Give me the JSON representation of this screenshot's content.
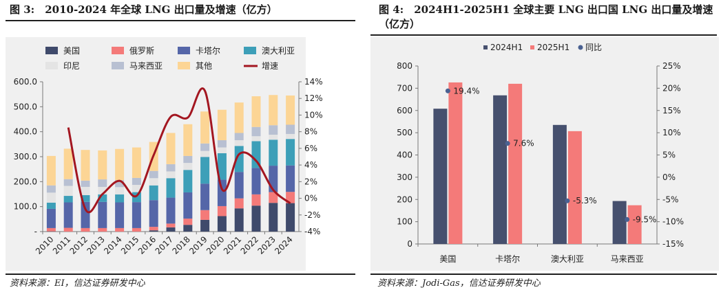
{
  "left": {
    "title": "图 3:　2010-2024 年全球 LNG 出口量及增速（亿方）",
    "source": "资料来源：EI，信达证券研发中心"
  },
  "right": {
    "title": "图 4:　2024H1-2025H1 全球主要 LNG 出口国 LNG 出口量及增速（亿方）",
    "source": "资料来源：Jodi-Gas，信达证券研发中心"
  },
  "colors": {
    "usa": "#3f4a6b",
    "russia": "#f47a79",
    "qatar": "#5566a8",
    "australia": "#3d9fb8",
    "indonesia": "#e4e4e4",
    "malaysia": "#b8c0d2",
    "others": "#fcd595",
    "growth": "#a31620",
    "h2024": "#46506e",
    "h2025": "#f47a79",
    "yoy": "#4a6191"
  },
  "chart_data": [
    {
      "type": "bar",
      "stacked": true,
      "categories": [
        "2010",
        "2011",
        "2012",
        "2013",
        "2014",
        "2015",
        "2016",
        "2017",
        "2018",
        "2019",
        "2020",
        "2021",
        "2022",
        "2023",
        "2024"
      ],
      "series": [
        {
          "name": "美国",
          "key": "usa",
          "values": [
            1,
            0,
            0,
            0,
            0,
            0,
            5,
            17,
            27,
            47,
            62,
            93,
            104,
            115,
            114
          ]
        },
        {
          "name": "俄罗斯",
          "key": "russia",
          "values": [
            13,
            15,
            14,
            14,
            14,
            14,
            14,
            15,
            25,
            39,
            40,
            40,
            45,
            43,
            45
          ]
        },
        {
          "name": "卡塔尔",
          "key": "qatar",
          "values": [
            77,
            102,
            105,
            105,
            103,
            104,
            107,
            104,
            105,
            106,
            106,
            106,
            106,
            106,
            106
          ]
        },
        {
          "name": "澳大利亚",
          "key": "australia",
          "values": [
            25,
            26,
            27,
            30,
            32,
            40,
            59,
            78,
            90,
            107,
            106,
            104,
            107,
            104,
            106
          ]
        },
        {
          "name": "印尼",
          "key": "indonesia",
          "values": [
            40,
            40,
            33,
            30,
            29,
            29,
            29,
            27,
            28,
            24,
            23,
            23,
            20,
            20,
            20
          ]
        },
        {
          "name": "马来西亚",
          "key": "malaysia",
          "values": [
            29,
            27,
            25,
            30,
            28,
            28,
            29,
            29,
            28,
            30,
            29,
            29,
            37,
            38,
            37
          ]
        },
        {
          "name": "其他",
          "key": "others",
          "values": [
            118,
            122,
            123,
            116,
            125,
            122,
            116,
            125,
            127,
            128,
            122,
            122,
            123,
            121,
            117
          ]
        }
      ],
      "line": {
        "name": "增速",
        "key": "growth",
        "values": [
          null,
          8.5,
          -1.3,
          0.5,
          2.1,
          0.3,
          5.2,
          9.8,
          9.7,
          12.9,
          1.1,
          5.3,
          4.5,
          1.0,
          -0.6
        ]
      },
      "ylim": [
        0,
        600
      ],
      "yticks": [
        "-",
        "100.0",
        "200.0",
        "300.0",
        "400.0",
        "500.0",
        "600.0"
      ],
      "y2lim": [
        -4,
        14
      ],
      "y2ticks": [
        "-4%",
        "-2%",
        "0%",
        "2%",
        "4%",
        "6%",
        "8%",
        "10%",
        "12%",
        "14%"
      ],
      "legend": [
        "美国",
        "俄罗斯",
        "卡塔尔",
        "澳大利亚",
        "印尼",
        "马来西亚",
        "其他",
        "增速"
      ],
      "legend_position": "top",
      "grid": false
    },
    {
      "type": "bar",
      "categories": [
        "美国",
        "卡塔尔",
        "澳大利亚",
        "马来西亚"
      ],
      "series": [
        {
          "name": "2024H1",
          "key": "h2024",
          "values": [
            608,
            668,
            535,
            193
          ]
        },
        {
          "name": "2025H1",
          "key": "h2025",
          "values": [
            726,
            720,
            507,
            174
          ]
        }
      ],
      "yoy": {
        "name": "同比",
        "key": "yoy",
        "values": [
          19.4,
          7.6,
          -5.3,
          -9.5
        ],
        "labels": [
          "19.4%",
          "7.6%",
          "-5.3%",
          "-9.5%"
        ]
      },
      "ylim": [
        0,
        800
      ],
      "yticks": [
        "0",
        "100",
        "200",
        "300",
        "400",
        "500",
        "600",
        "700",
        "800"
      ],
      "y2lim": [
        -15,
        25
      ],
      "y2ticks": [
        "-15%",
        "-10%",
        "-5%",
        "0%",
        "5%",
        "10%",
        "15%",
        "20%",
        "25%"
      ],
      "legend": [
        "2024H1",
        "2025H1",
        "同比"
      ],
      "legend_position": "top",
      "grid": false
    }
  ]
}
